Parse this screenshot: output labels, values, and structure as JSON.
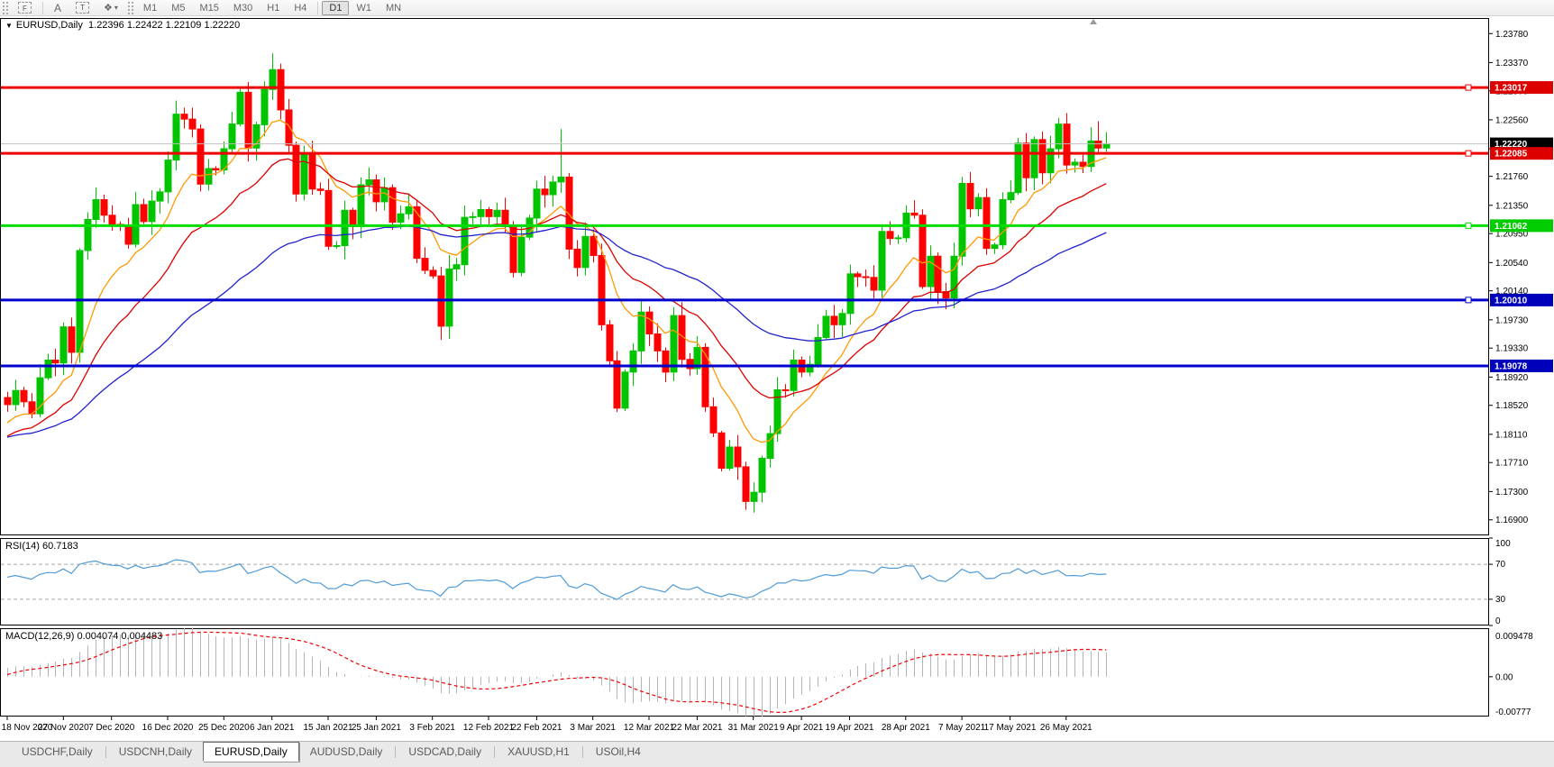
{
  "toolbar": {
    "tools": [
      {
        "label": "F",
        "name": "fibonacci-icon"
      },
      {
        "label": "A",
        "name": "arrow-text-icon"
      },
      {
        "label": "T",
        "name": "text-label-icon"
      },
      {
        "label": "❖",
        "name": "arrows-icon"
      }
    ],
    "dropdown_glyph": "▾",
    "timeframes": [
      {
        "label": "M1"
      },
      {
        "label": "M5"
      },
      {
        "label": "M15"
      },
      {
        "label": "M30"
      },
      {
        "label": "H1"
      },
      {
        "label": "H4"
      },
      {
        "label": "D1"
      },
      {
        "label": "W1"
      },
      {
        "label": "MN"
      }
    ],
    "active_timeframe": "D1"
  },
  "chart": {
    "menu_marker": "▼",
    "symbol": "EURUSD,Daily",
    "ohlc": "1.22396 1.22422 1.22109 1.22220",
    "background": "#ffffff",
    "up_color": "#00c400",
    "down_color": "#ff0000",
    "current_price_line_color": "#c0c0c0"
  },
  "price_axis": {
    "ticks": [
      "1.23780",
      "1.23370",
      "1.22970",
      "1.22560",
      "1.22150",
      "1.21760",
      "1.21350",
      "1.20950",
      "1.20540",
      "1.20140",
      "1.19730",
      "1.19330",
      "1.18920",
      "1.18520",
      "1.18110",
      "1.17710",
      "1.17300",
      "1.16900"
    ],
    "badges": [
      {
        "label": "1.23017",
        "price": 1.23017,
        "bg": "#dd0000",
        "fg": "#ffffff"
      },
      {
        "label": "1.22220",
        "price": 1.2222,
        "bg": "#000000",
        "fg": "#ffffff"
      },
      {
        "label": "1.22085",
        "price": 1.22085,
        "bg": "#dd0000",
        "fg": "#ffffff"
      },
      {
        "label": "1.21062",
        "price": 1.21062,
        "bg": "#00cc00",
        "fg": "#ffffff"
      },
      {
        "label": "1.20010",
        "price": 1.2001,
        "bg": "#0000bb",
        "fg": "#ffffff"
      },
      {
        "label": "1.19078",
        "price": 1.19078,
        "bg": "#0000bb",
        "fg": "#ffffff"
      }
    ]
  },
  "hlines": [
    {
      "price": 1.23017,
      "color": "#ee0000",
      "width": 3,
      "handle": true
    },
    {
      "price": 1.22085,
      "color": "#ee0000",
      "width": 3,
      "handle": true
    },
    {
      "price": 1.21062,
      "color": "#00dd00",
      "width": 3,
      "handle": true
    },
    {
      "price": 1.2001,
      "color": "#0000cc",
      "width": 3,
      "handle": true
    },
    {
      "price": 1.19078,
      "color": "#0000cc",
      "width": 3,
      "handle": false
    }
  ],
  "current_price": 1.2222,
  "date_axis": [
    {
      "text": "18 Nov 2020",
      "i": 0
    },
    {
      "text": "27 Nov 2020",
      "i": 7
    },
    {
      "text": "7 Dec 2020",
      "i": 13
    },
    {
      "text": "16 Dec 2020",
      "i": 20
    },
    {
      "text": "25 Dec 2020",
      "i": 27
    },
    {
      "text": "6 Jan 2021",
      "i": 33
    },
    {
      "text": "15 Jan 2021",
      "i": 40
    },
    {
      "text": "25 Jan 2021",
      "i": 46
    },
    {
      "text": "3 Feb 2021",
      "i": 53
    },
    {
      "text": "12 Feb 2021",
      "i": 60
    },
    {
      "text": "22 Feb 2021",
      "i": 66
    },
    {
      "text": "3 Mar 2021",
      "i": 73
    },
    {
      "text": "12 Mar 2021",
      "i": 80
    },
    {
      "text": "22 Mar 2021",
      "i": 86
    },
    {
      "text": "31 Mar 2021",
      "i": 93
    },
    {
      "text": "9 Apr 2021",
      "i": 99
    },
    {
      "text": "19 Apr 2021",
      "i": 105
    },
    {
      "text": "28 Apr 2021",
      "i": 112
    },
    {
      "text": "7 May 2021",
      "i": 119
    },
    {
      "text": "17 May 2021",
      "i": 125
    },
    {
      "text": "26 May 2021",
      "i": 132
    }
  ],
  "rsi": {
    "label": "RSI(14) 60.7183",
    "period": 14,
    "color": "#4f9bd8",
    "axis": [
      "100",
      "70",
      "30",
      "0"
    ],
    "upper": 70,
    "lower": 30
  },
  "macd": {
    "label": "MACD(12,26,9) 0.004074 0.004483",
    "fast": 12,
    "slow": 26,
    "signal": 9,
    "hist_color": "#b4b4b4",
    "signal_color": "#ee0000",
    "axis_max_label": "0.009478",
    "axis_zero_label": "0.00",
    "axis_min_label": "-0.00777",
    "max": 0.009478,
    "min": -0.00777
  },
  "tabs": [
    {
      "label": "USDCHF,Daily"
    },
    {
      "label": "USDCNH,Daily"
    },
    {
      "label": "EURUSD,Daily"
    },
    {
      "label": "AUDUSD,Daily"
    },
    {
      "label": "USDCAD,Daily"
    },
    {
      "label": "XAUUSD,H1"
    },
    {
      "label": "USOil,H4"
    }
  ],
  "active_tab": "EURUSD,Daily",
  "chart_data": {
    "type": "candlestick",
    "symbol": "EURUSD",
    "timeframe": "Daily",
    "price_range": [
      1.1668,
      1.24
    ],
    "pre_closes": [
      1.191,
      1.1853,
      1.1854,
      1.1812,
      1.184,
      1.1817,
      1.1794,
      1.1812,
      1.1855,
      1.1862,
      1.1845,
      1.1866,
      1.184,
      1.1786,
      1.1786,
      1.184,
      1.1749,
      1.1685,
      1.1663,
      1.1632,
      1.1674,
      1.1664,
      1.1722,
      1.1719,
      1.1721,
      1.1786,
      1.1767,
      1.1741,
      1.176,
      1.1726,
      1.1721,
      1.1768,
      1.1811,
      1.1866,
      1.1867,
      1.1829,
      1.1846,
      1.186,
      1.1828,
      1.1822,
      1.1814,
      1.1847,
      1.1751,
      1.1717,
      1.1646,
      1.1642,
      1.1721,
      1.1781,
      1.1806,
      1.1874,
      1.1891,
      1.1814,
      1.181,
      1.1852,
      1.1863
    ],
    "closes": [
      1.1853,
      1.1873,
      1.1857,
      1.184,
      1.1891,
      1.1916,
      1.1912,
      1.1963,
      1.1927,
      1.2071,
      1.2115,
      1.2143,
      1.2121,
      1.2108,
      1.2106,
      1.208,
      1.2136,
      1.2112,
      1.2141,
      1.2154,
      1.2199,
      1.2264,
      1.2257,
      1.2243,
      1.2165,
      1.2187,
      1.2185,
      1.2215,
      1.225,
      1.2295,
      1.2216,
      1.2249,
      1.2299,
      1.2327,
      1.227,
      1.222,
      1.2151,
      1.2207,
      1.2158,
      1.2156,
      1.2077,
      1.2078,
      1.2128,
      1.2105,
      1.2164,
      1.2171,
      1.214,
      1.216,
      1.2111,
      1.2123,
      1.2133,
      1.206,
      1.2043,
      1.2035,
      1.1964,
      1.2045,
      1.2051,
      1.2118,
      1.2119,
      1.2129,
      1.2119,
      1.2128,
      1.2105,
      1.204,
      1.209,
      1.2117,
      1.2158,
      1.215,
      1.2168,
      1.2175,
      1.2073,
      1.2047,
      1.2091,
      1.2064,
      1.1966,
      1.1915,
      1.1848,
      1.1899,
      1.1929,
      1.1984,
      1.1953,
      1.1929,
      1.1899,
      1.1979,
      1.1917,
      1.1904,
      1.1934,
      1.185,
      1.1813,
      1.1763,
      1.1793,
      1.1765,
      1.1716,
      1.1729,
      1.1777,
      1.1812,
      1.1874,
      1.1873,
      1.1916,
      1.1899,
      1.191,
      1.1948,
      1.1978,
      1.1966,
      1.1982,
      1.2038,
      1.2034,
      1.2033,
      1.2015,
      1.2098,
      1.2088,
      1.2089,
      1.2124,
      1.2121,
      1.202,
      1.2063,
      1.2013,
      1.2004,
      1.2063,
      1.2166,
      1.213,
      1.2146,
      1.2074,
      1.2079,
      1.2143,
      1.2153,
      1.2223,
      1.2174,
      1.2228,
      1.2181,
      1.2215,
      1.225,
      1.2192,
      1.2196,
      1.219,
      1.2226,
      1.2216,
      1.2222
    ],
    "wick_overrides": {
      "33": {
        "h": 1.235
      },
      "69": {
        "h": 1.2243
      },
      "92": {
        "l": 1.1704
      },
      "136": {
        "h": 1.2254
      }
    },
    "moving_averages": [
      {
        "period": 10,
        "method": "ema",
        "color": "#ff9900"
      },
      {
        "period": 21,
        "method": "ema",
        "color": "#dd0000"
      },
      {
        "period": 50,
        "method": "ema",
        "color": "#2222cc"
      }
    ]
  }
}
